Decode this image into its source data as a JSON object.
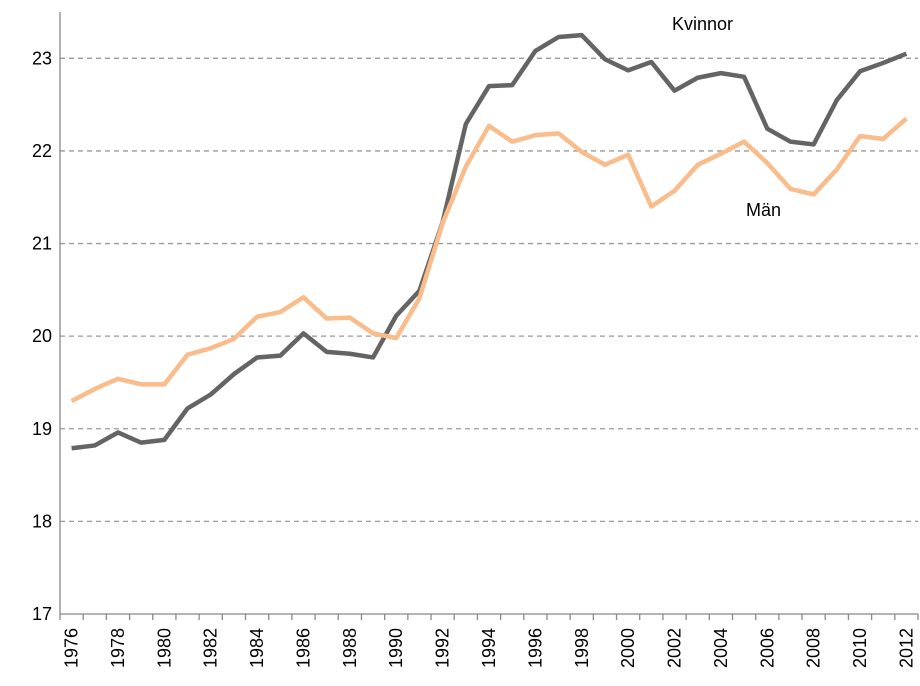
{
  "chart_data": {
    "type": "line",
    "categories": [
      "1976",
      null,
      "1978",
      null,
      "1980",
      null,
      "1982",
      null,
      "1984",
      null,
      "1986",
      null,
      "1988",
      null,
      "1990",
      null,
      "1992",
      null,
      "1994",
      null,
      "1996",
      null,
      "1998",
      null,
      "2000",
      null,
      "2002",
      null,
      "2004",
      null,
      "2006",
      null,
      "2008",
      null,
      "2010",
      null,
      "2012"
    ],
    "series": [
      {
        "name": "Kvinnor",
        "color": "#646464",
        "values": [
          18.79,
          18.82,
          18.96,
          18.85,
          18.88,
          19.22,
          19.37,
          19.59,
          19.77,
          19.79,
          20.03,
          19.83,
          19.81,
          19.77,
          20.22,
          20.49,
          21.23,
          22.29,
          22.7,
          22.71,
          23.08,
          23.23,
          23.25,
          22.99,
          22.87,
          22.96,
          22.65,
          22.79,
          22.84,
          22.8,
          22.24,
          22.1,
          22.07,
          22.55,
          22.86,
          22.95,
          23.05
        ]
      },
      {
        "name": "Män",
        "color": "#f9bc8a",
        "values": [
          19.3,
          19.43,
          19.54,
          19.48,
          19.48,
          19.8,
          19.87,
          19.97,
          20.21,
          20.26,
          20.42,
          20.19,
          20.2,
          20.03,
          19.98,
          20.41,
          21.22,
          21.83,
          22.27,
          22.1,
          22.17,
          22.19,
          21.99,
          21.85,
          21.96,
          21.4,
          21.57,
          21.85,
          21.97,
          22.1,
          21.87,
          21.59,
          21.53,
          21.8,
          22.16,
          22.13,
          22.35
        ]
      }
    ],
    "ylim": [
      17,
      23.5
    ],
    "yticks": [
      17,
      18,
      19,
      20,
      21,
      22,
      23
    ],
    "grid": true
  }
}
